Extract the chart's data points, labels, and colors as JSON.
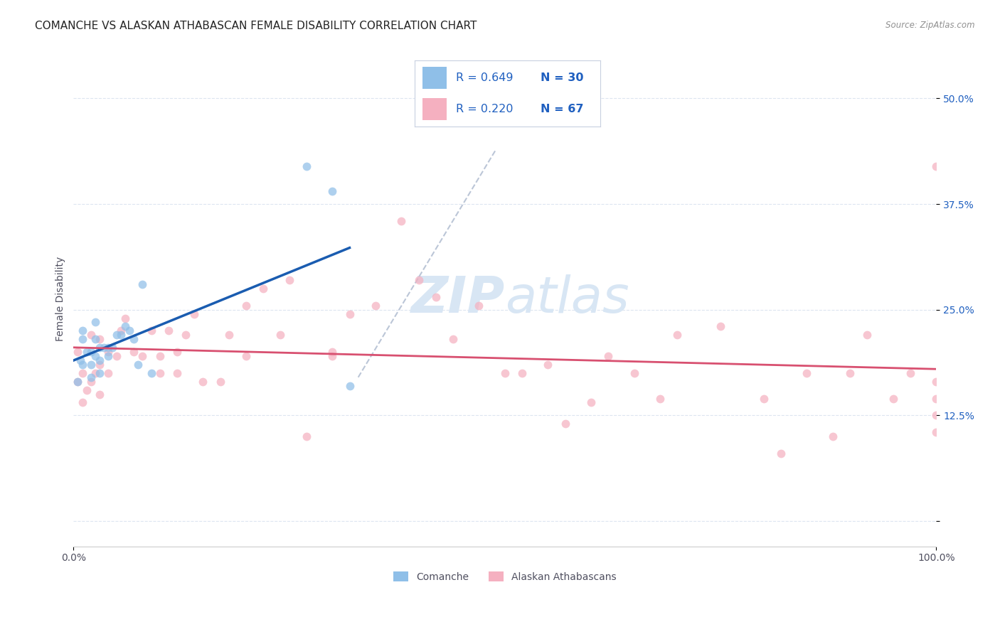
{
  "title": "COMANCHE VS ALASKAN ATHABASCAN FEMALE DISABILITY CORRELATION CHART",
  "source": "Source: ZipAtlas.com",
  "ylabel": "Female Disability",
  "xlim": [
    0,
    1.0
  ],
  "ylim": [
    -0.03,
    0.555
  ],
  "xticks": [
    0.0,
    1.0
  ],
  "xticklabels": [
    "0.0%",
    "100.0%"
  ],
  "ytick_vals": [
    0.0,
    0.125,
    0.25,
    0.375,
    0.5
  ],
  "ytick_labels": [
    "",
    "12.5%",
    "25.0%",
    "37.5%",
    "50.0%"
  ],
  "comanche_x": [
    0.005,
    0.008,
    0.01,
    0.01,
    0.01,
    0.015,
    0.02,
    0.02,
    0.02,
    0.025,
    0.025,
    0.025,
    0.03,
    0.03,
    0.03,
    0.035,
    0.04,
    0.04,
    0.045,
    0.05,
    0.055,
    0.06,
    0.065,
    0.07,
    0.075,
    0.08,
    0.09,
    0.27,
    0.3,
    0.32
  ],
  "comanche_y": [
    0.165,
    0.19,
    0.215,
    0.225,
    0.185,
    0.2,
    0.17,
    0.185,
    0.2,
    0.195,
    0.215,
    0.235,
    0.175,
    0.19,
    0.205,
    0.205,
    0.205,
    0.195,
    0.205,
    0.22,
    0.22,
    0.23,
    0.225,
    0.215,
    0.185,
    0.28,
    0.175,
    0.42,
    0.39,
    0.16
  ],
  "alaskan_x": [
    0.005,
    0.005,
    0.01,
    0.01,
    0.015,
    0.02,
    0.02,
    0.025,
    0.03,
    0.03,
    0.03,
    0.04,
    0.04,
    0.05,
    0.055,
    0.06,
    0.07,
    0.08,
    0.09,
    0.1,
    0.1,
    0.11,
    0.12,
    0.12,
    0.13,
    0.14,
    0.15,
    0.17,
    0.18,
    0.2,
    0.2,
    0.22,
    0.24,
    0.25,
    0.27,
    0.3,
    0.3,
    0.32,
    0.35,
    0.38,
    0.4,
    0.42,
    0.44,
    0.47,
    0.5,
    0.52,
    0.55,
    0.57,
    0.6,
    0.62,
    0.65,
    0.68,
    0.7,
    0.75,
    0.8,
    0.82,
    0.85,
    0.88,
    0.9,
    0.92,
    0.95,
    0.97,
    1.0,
    1.0,
    1.0,
    1.0,
    1.0
  ],
  "alaskan_y": [
    0.2,
    0.165,
    0.175,
    0.14,
    0.155,
    0.22,
    0.165,
    0.175,
    0.215,
    0.185,
    0.15,
    0.2,
    0.175,
    0.195,
    0.225,
    0.24,
    0.2,
    0.195,
    0.225,
    0.195,
    0.175,
    0.225,
    0.2,
    0.175,
    0.22,
    0.245,
    0.165,
    0.165,
    0.22,
    0.195,
    0.255,
    0.275,
    0.22,
    0.285,
    0.1,
    0.2,
    0.195,
    0.245,
    0.255,
    0.355,
    0.285,
    0.265,
    0.215,
    0.255,
    0.175,
    0.175,
    0.185,
    0.115,
    0.14,
    0.195,
    0.175,
    0.145,
    0.22,
    0.23,
    0.145,
    0.08,
    0.175,
    0.1,
    0.175,
    0.22,
    0.145,
    0.175,
    0.125,
    0.145,
    0.165,
    0.105,
    0.42
  ],
  "blue_dot_color": "#8fbfe8",
  "pink_dot_color": "#f5b0c0",
  "blue_line_color": "#1a5cb0",
  "pink_line_color": "#d85070",
  "ref_line_color": "#b0bcd0",
  "grid_color": "#dde5f0",
  "bg_color": "#ffffff",
  "legend_text_color": "#2060c0",
  "tick_color_right": "#2060c0",
  "tick_color_bottom": "#505060",
  "dot_size": 72,
  "dot_alpha": 0.72,
  "title_fontsize": 11,
  "tick_fontsize": 10,
  "ylabel_fontsize": 10,
  "legend_fontsize": 11.5
}
